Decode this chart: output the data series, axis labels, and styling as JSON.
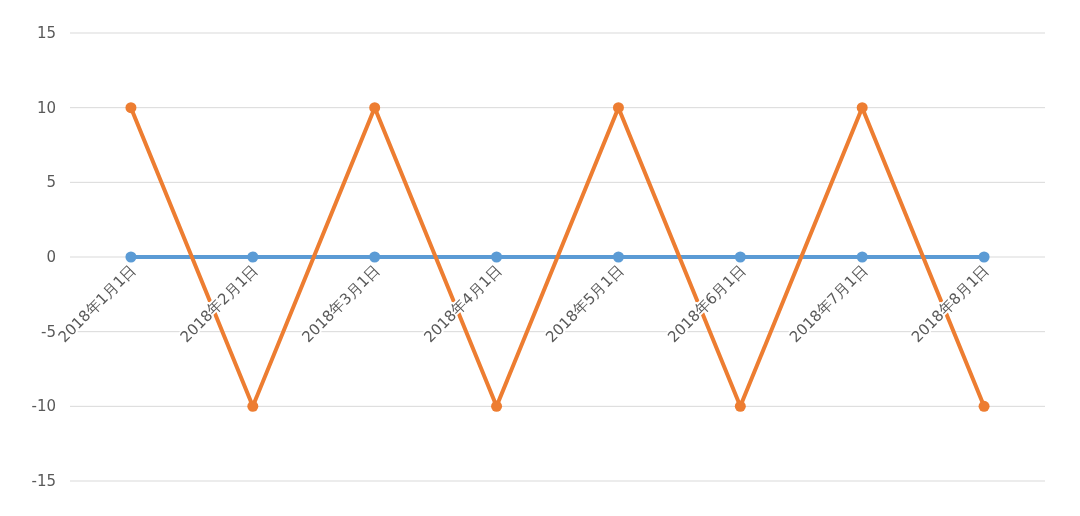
{
  "chart_data": {
    "type": "line",
    "categories": [
      "2018年1月1日",
      "2018年2月1日",
      "2018年3月1日",
      "2018年4月1日",
      "2018年5月1日",
      "2018年6月1日",
      "2018年7月1日",
      "2018年8月1日"
    ],
    "series": [
      {
        "color": "#5b9bd5",
        "values": [
          0,
          0,
          0,
          0,
          0,
          0,
          0,
          0
        ]
      },
      {
        "color": "#ed7d31",
        "values": [
          10,
          -10,
          10,
          -10,
          10,
          -10,
          10,
          -10
        ]
      }
    ],
    "ylim": [
      -15,
      15
    ],
    "yticks": [
      -15,
      -10,
      -5,
      0,
      5,
      10,
      15
    ],
    "grid": "y",
    "marker": "circle",
    "line_style": "solid"
  }
}
